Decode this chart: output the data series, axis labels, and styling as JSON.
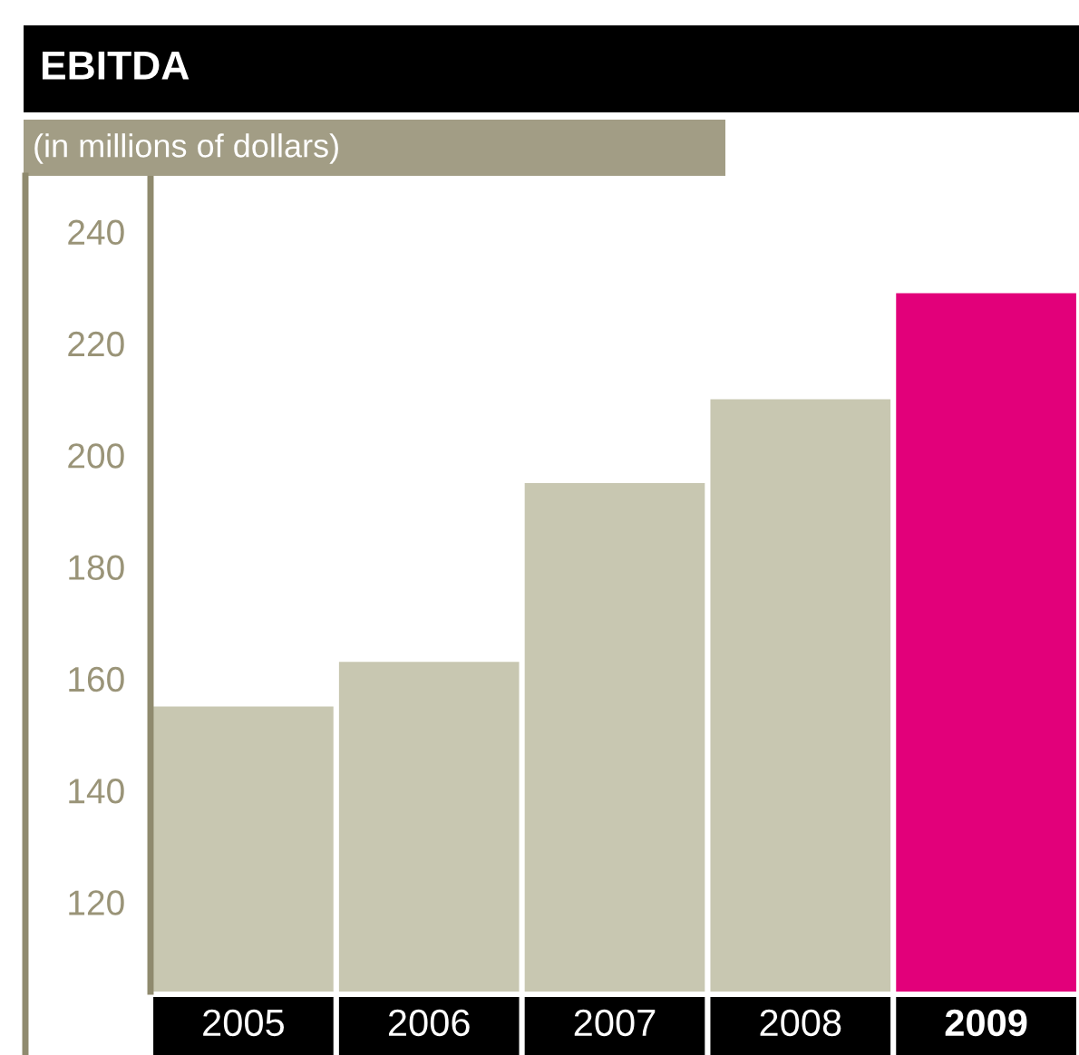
{
  "chart_data": {
    "type": "bar",
    "title": "EBITDA",
    "subtitle": "(in millions of dollars)",
    "categories": [
      "2005",
      "2006",
      "2007",
      "2008",
      "2009"
    ],
    "values": [
      155,
      163,
      195,
      210,
      229
    ],
    "colors": [
      "#c8c7b1",
      "#c8c7b1",
      "#c8c7b1",
      "#c8c7b1",
      "#e2007a"
    ],
    "ylim": [
      104,
      250
    ],
    "yticks": [
      120,
      140,
      160,
      180,
      200,
      220,
      240
    ],
    "grid": false,
    "legend": false
  }
}
